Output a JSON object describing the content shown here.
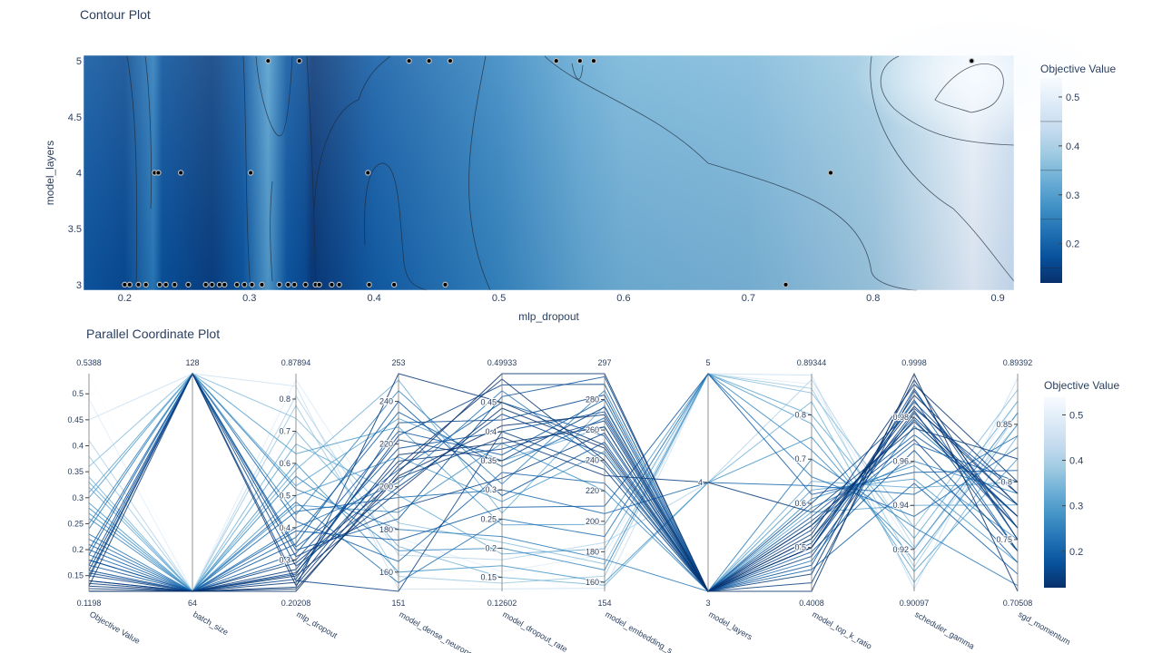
{
  "colors": {
    "scale": [
      "#08306b",
      "#08519c",
      "#2171b5",
      "#4292c6",
      "#6baed6",
      "#9ecae1",
      "#c6dbef",
      "#deebf7",
      "#f7fbff"
    ],
    "text": "#2a3f5f",
    "axis": "#444444",
    "line_lo": "#08306b",
    "line_hi": "#f7fbff"
  },
  "chart_data": [
    {
      "type": "heatmap",
      "subtype": "contour",
      "title": "Contour Plot",
      "xlabel": "mlp_dropout",
      "ylabel": "model_layers",
      "xlim": [
        0.167,
        0.913
      ],
      "ylim": [
        2.95,
        5.05
      ],
      "x_ticks": [
        "0.2",
        "0.3",
        "0.4",
        "0.5",
        "0.6",
        "0.7",
        "0.8",
        "0.9"
      ],
      "y_ticks": [
        "3",
        "3.5",
        "4",
        "4.5",
        "5"
      ],
      "x_tick_values": [
        0.2,
        0.3,
        0.4,
        0.5,
        0.6,
        0.7,
        0.8,
        0.9
      ],
      "y_tick_values": [
        3,
        3.5,
        4,
        4.5,
        5
      ],
      "colorbar": {
        "title": "Objective Value",
        "ticks": [
          "0.2",
          "0.3",
          "0.4",
          "0.5"
        ],
        "tick_values": [
          0.2,
          0.3,
          0.4,
          0.5
        ],
        "range": [
          0.1198,
          0.5388
        ]
      },
      "points": [
        {
          "x": 0.315,
          "y": 5
        },
        {
          "x": 0.34,
          "y": 5
        },
        {
          "x": 0.428,
          "y": 5
        },
        {
          "x": 0.444,
          "y": 5
        },
        {
          "x": 0.461,
          "y": 5
        },
        {
          "x": 0.546,
          "y": 5
        },
        {
          "x": 0.565,
          "y": 5
        },
        {
          "x": 0.576,
          "y": 5
        },
        {
          "x": 0.879,
          "y": 5
        },
        {
          "x": 0.224,
          "y": 4
        },
        {
          "x": 0.227,
          "y": 4
        },
        {
          "x": 0.245,
          "y": 4
        },
        {
          "x": 0.301,
          "y": 4
        },
        {
          "x": 0.395,
          "y": 4
        },
        {
          "x": 0.766,
          "y": 4
        },
        {
          "x": 0.2,
          "y": 3
        },
        {
          "x": 0.204,
          "y": 3
        },
        {
          "x": 0.211,
          "y": 3
        },
        {
          "x": 0.217,
          "y": 3
        },
        {
          "x": 0.228,
          "y": 3
        },
        {
          "x": 0.233,
          "y": 3
        },
        {
          "x": 0.24,
          "y": 3
        },
        {
          "x": 0.251,
          "y": 3
        },
        {
          "x": 0.265,
          "y": 3
        },
        {
          "x": 0.27,
          "y": 3
        },
        {
          "x": 0.276,
          "y": 3
        },
        {
          "x": 0.28,
          "y": 3
        },
        {
          "x": 0.29,
          "y": 3
        },
        {
          "x": 0.296,
          "y": 3
        },
        {
          "x": 0.302,
          "y": 3
        },
        {
          "x": 0.31,
          "y": 3
        },
        {
          "x": 0.324,
          "y": 3
        },
        {
          "x": 0.331,
          "y": 3
        },
        {
          "x": 0.336,
          "y": 3
        },
        {
          "x": 0.345,
          "y": 3
        },
        {
          "x": 0.353,
          "y": 3
        },
        {
          "x": 0.356,
          "y": 3
        },
        {
          "x": 0.366,
          "y": 3
        },
        {
          "x": 0.372,
          "y": 3
        },
        {
          "x": 0.396,
          "y": 3
        },
        {
          "x": 0.416,
          "y": 3
        },
        {
          "x": 0.457,
          "y": 3
        },
        {
          "x": 0.73,
          "y": 3
        }
      ],
      "field_profile": [
        {
          "x": 0.167,
          "v": 0.18
        },
        {
          "x": 0.2,
          "v": 0.16
        },
        {
          "x": 0.223,
          "v": 0.24
        },
        {
          "x": 0.23,
          "v": 0.17
        },
        {
          "x": 0.27,
          "v": 0.14
        },
        {
          "x": 0.295,
          "v": 0.18
        },
        {
          "x": 0.315,
          "v": 0.3
        },
        {
          "x": 0.33,
          "v": 0.18
        },
        {
          "x": 0.345,
          "v": 0.16
        },
        {
          "x": 0.35,
          "v": 0.13
        },
        {
          "x": 0.4,
          "v": 0.19
        },
        {
          "x": 0.5,
          "v": 0.26
        },
        {
          "x": 0.565,
          "v": 0.32
        },
        {
          "x": 0.6,
          "v": 0.34
        },
        {
          "x": 0.7,
          "v": 0.35
        },
        {
          "x": 0.8,
          "v": 0.39
        },
        {
          "x": 0.88,
          "v": 0.52
        },
        {
          "x": 0.913,
          "v": 0.46
        }
      ]
    },
    {
      "type": "line",
      "subtype": "parallel_coordinates",
      "title": "Parallel Coordinate Plot",
      "colorbar": {
        "title": "Objective Value",
        "ticks": [
          "0.2",
          "0.3",
          "0.4",
          "0.5"
        ],
        "tick_values": [
          0.2,
          0.3,
          0.4,
          0.5
        ],
        "range": [
          0.1198,
          0.5388
        ]
      },
      "axes": [
        {
          "label": "Objective Value",
          "min": 0.1198,
          "max": 0.5388,
          "min_label": "0.1198",
          "max_label": "0.5388",
          "ticks": [
            "0.15",
            "0.2",
            "0.25",
            "0.3",
            "0.35",
            "0.4",
            "0.45",
            "0.5"
          ],
          "tick_values": [
            0.15,
            0.2,
            0.25,
            0.3,
            0.35,
            0.4,
            0.45,
            0.5
          ]
        },
        {
          "label": "batch_size",
          "min": 64,
          "max": 128,
          "min_label": "64",
          "max_label": "128",
          "ticks": [],
          "tick_values": []
        },
        {
          "label": "mlp_dropout",
          "min": 0.20208,
          "max": 0.87894,
          "min_label": "0.20208",
          "max_label": "0.87894",
          "ticks": [
            "0.3",
            "0.4",
            "0.5",
            "0.6",
            "0.7",
            "0.8"
          ],
          "tick_values": [
            0.3,
            0.4,
            0.5,
            0.6,
            0.7,
            0.8
          ]
        },
        {
          "label": "model_dense_neurons",
          "min": 151,
          "max": 253,
          "min_label": "151",
          "max_label": "253",
          "ticks": [
            "160",
            "180",
            "200",
            "220",
            "240"
          ],
          "tick_values": [
            160,
            180,
            200,
            220,
            240
          ]
        },
        {
          "label": "model_dropout_rate",
          "min": 0.12602,
          "max": 0.49933,
          "min_label": "0.12602",
          "max_label": "0.49933",
          "ticks": [
            "0.15",
            "0.2",
            "0.25",
            "0.3",
            "0.35",
            "0.4",
            "0.45"
          ],
          "tick_values": [
            0.15,
            0.2,
            0.25,
            0.3,
            0.35,
            0.4,
            0.45
          ]
        },
        {
          "label": "model_embedding_s...",
          "min": 154,
          "max": 297,
          "min_label": "154",
          "max_label": "297",
          "ticks": [
            "160",
            "180",
            "200",
            "220",
            "240",
            "260",
            "280"
          ],
          "tick_values": [
            160,
            180,
            200,
            220,
            240,
            260,
            280
          ]
        },
        {
          "label": "model_layers",
          "min": 3,
          "max": 5,
          "min_label": "3",
          "max_label": "5",
          "ticks": [
            "4"
          ],
          "tick_values": [
            4
          ]
        },
        {
          "label": "model_top_k_ratio",
          "min": 0.4008,
          "max": 0.89344,
          "min_label": "0.4008",
          "max_label": "0.89344",
          "ticks": [
            "0.5",
            "0.6",
            "0.7",
            "0.8"
          ],
          "tick_values": [
            0.5,
            0.6,
            0.7,
            0.8
          ]
        },
        {
          "label": "scheduler_gamma",
          "min": 0.90097,
          "max": 0.9998,
          "min_label": "0.90097",
          "max_label": "0.9998",
          "ticks": [
            "0.92",
            "0.94",
            "0.96",
            "0.98"
          ],
          "tick_values": [
            0.92,
            0.94,
            0.96,
            0.98
          ]
        },
        {
          "label": "sgd_momentum",
          "min": 0.70508,
          "max": 0.89392,
          "min_label": "0.70508",
          "max_label": "0.89392",
          "ticks": [
            "0.75",
            "0.8",
            "0.85"
          ],
          "tick_values": [
            0.75,
            0.8,
            0.85
          ]
        }
      ],
      "lines": [
        [
          0.12,
          64,
          0.21,
          205,
          0.41,
          270,
          3,
          0.52,
          0.985,
          0.78
        ],
        [
          0.13,
          64,
          0.23,
          215,
          0.38,
          262,
          3,
          0.55,
          0.978,
          0.77
        ],
        [
          0.125,
          64,
          0.25,
          198,
          0.44,
          248,
          3,
          0.5,
          0.99,
          0.79
        ],
        [
          0.14,
          64,
          0.27,
          222,
          0.35,
          275,
          3,
          0.48,
          0.982,
          0.76
        ],
        [
          0.13,
          128,
          0.22,
          210,
          0.49,
          240,
          3,
          0.53,
          0.995,
          0.8
        ],
        [
          0.15,
          128,
          0.31,
          190,
          0.32,
          258,
          3,
          0.56,
          0.97,
          0.74
        ],
        [
          0.16,
          64,
          0.24,
          230,
          0.42,
          283,
          3,
          0.51,
          0.987,
          0.78
        ],
        [
          0.14,
          64,
          0.29,
          204,
          0.39,
          230,
          4,
          0.58,
          0.975,
          0.82
        ],
        [
          0.17,
          128,
          0.33,
          185,
          0.46,
          295,
          3,
          0.46,
          0.993,
          0.75
        ],
        [
          0.15,
          64,
          0.26,
          212,
          0.37,
          266,
          3,
          0.54,
          0.98,
          0.77
        ],
        [
          0.18,
          64,
          0.35,
          240,
          0.29,
          252,
          3,
          0.49,
          0.965,
          0.73
        ],
        [
          0.16,
          128,
          0.28,
          200,
          0.43,
          244,
          3,
          0.6,
          0.984,
          0.79
        ],
        [
          0.19,
          64,
          0.39,
          175,
          0.27,
          210,
          5,
          0.62,
          0.955,
          0.81
        ],
        [
          0.17,
          64,
          0.3,
          218,
          0.4,
          272,
          3,
          0.52,
          0.979,
          0.76
        ],
        [
          0.2,
          128,
          0.42,
          165,
          0.33,
          225,
          3,
          0.45,
          0.95,
          0.72
        ],
        [
          0.18,
          64,
          0.32,
          226,
          0.36,
          280,
          3,
          0.57,
          0.972,
          0.78
        ],
        [
          0.21,
          64,
          0.45,
          195,
          0.3,
          205,
          4,
          0.64,
          0.945,
          0.84
        ],
        [
          0.19,
          128,
          0.34,
          208,
          0.45,
          256,
          3,
          0.5,
          0.988,
          0.74
        ],
        [
          0.22,
          64,
          0.48,
          155,
          0.25,
          190,
          5,
          0.66,
          0.935,
          0.83
        ],
        [
          0.2,
          64,
          0.37,
          235,
          0.34,
          268,
          3,
          0.55,
          0.968,
          0.8
        ],
        [
          0.24,
          128,
          0.52,
          180,
          0.22,
          175,
          3,
          0.7,
          0.93,
          0.71
        ],
        [
          0.23,
          64,
          0.4,
          202,
          0.47,
          238,
          3,
          0.47,
          0.976,
          0.77
        ],
        [
          0.26,
          64,
          0.56,
          170,
          0.2,
          168,
          5,
          0.72,
          0.92,
          0.86
        ],
        [
          0.25,
          128,
          0.44,
          245,
          0.31,
          286,
          3,
          0.59,
          0.96,
          0.79
        ],
        [
          0.28,
          64,
          0.6,
          160,
          0.17,
          160,
          4,
          0.75,
          0.915,
          0.85
        ],
        [
          0.27,
          64,
          0.47,
          188,
          0.38,
          220,
          3,
          0.61,
          0.958,
          0.75
        ],
        [
          0.3,
          128,
          0.63,
          228,
          0.24,
          198,
          5,
          0.78,
          0.91,
          0.82
        ],
        [
          0.29,
          64,
          0.5,
          214,
          0.28,
          246,
          3,
          0.63,
          0.952,
          0.73
        ],
        [
          0.32,
          64,
          0.66,
          196,
          0.19,
          182,
          5,
          0.8,
          0.925,
          0.87
        ],
        [
          0.31,
          128,
          0.53,
          232,
          0.35,
          262,
          3,
          0.58,
          0.94,
          0.78
        ],
        [
          0.34,
          64,
          0.7,
          172,
          0.15,
          158,
          4,
          0.83,
          0.905,
          0.84
        ],
        [
          0.33,
          64,
          0.58,
          250,
          0.26,
          276,
          3,
          0.65,
          0.948,
          0.8
        ],
        [
          0.36,
          128,
          0.74,
          183,
          0.21,
          172,
          5,
          0.85,
          0.93,
          0.88
        ],
        [
          0.38,
          64,
          0.78,
          158,
          0.14,
          164,
          5,
          0.86,
          0.912,
          0.86
        ],
        [
          0.41,
          64,
          0.81,
          168,
          0.18,
          186,
          4,
          0.88,
          0.921,
          0.85
        ],
        [
          0.45,
          128,
          0.84,
          152,
          0.13,
          156,
          5,
          0.89,
          0.902,
          0.89
        ],
        [
          0.49,
          64,
          0.86,
          176,
          0.16,
          178,
          5,
          0.87,
          0.918,
          0.87
        ],
        [
          0.5388,
          64,
          0.87894,
          162,
          0.12602,
          154,
          5,
          0.89344,
          0.90097,
          0.89392
        ],
        [
          0.1198,
          64,
          0.20208,
          207,
          0.49933,
          297,
          3,
          0.4008,
          0.9998,
          0.70508
        ],
        [
          0.135,
          64,
          0.215,
          253,
          0.45,
          250,
          3,
          0.44,
          0.997,
          0.75
        ],
        [
          0.145,
          128,
          0.235,
          151,
          0.4,
          234,
          3,
          0.42,
          0.992,
          0.76
        ],
        [
          0.155,
          64,
          0.255,
          224,
          0.48,
          290,
          3,
          0.5,
          0.983,
          0.74
        ]
      ]
    }
  ]
}
